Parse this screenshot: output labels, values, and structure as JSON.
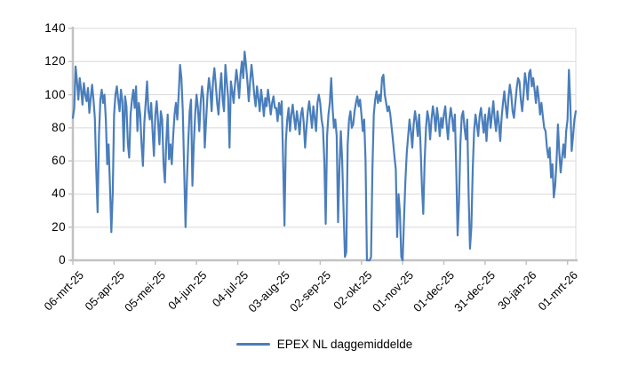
{
  "chart_data": {
    "type": "line",
    "title": "",
    "xlabel": "",
    "ylabel": "",
    "ylim": [
      0,
      140
    ],
    "grid": true,
    "legend_position": "bottom",
    "y_ticks": [
      0,
      20,
      40,
      60,
      80,
      100,
      120,
      140
    ],
    "x_tick_labels": [
      "06-mrt-25",
      "05-apr-25",
      "05-mei-25",
      "04-jun-25",
      "04-jul-25",
      "03-aug-25",
      "02-sep-25",
      "02-okt-25",
      "01-nov-25",
      "01-dec-25",
      "31-dec-25",
      "30-jan-26",
      "01-mrt-26"
    ],
    "x_tick_interval_days": 30,
    "series": [
      {
        "name": "EPEX NL daggemiddelde",
        "color": "#4A7EBB",
        "values": [
          86,
          92,
          117,
          108,
          97,
          110,
          103,
          94,
          107,
          100,
          96,
          104,
          89,
          98,
          106,
          97,
          86,
          55,
          29,
          75,
          97,
          103,
          95,
          100,
          85,
          58,
          70,
          45,
          17,
          40,
          88,
          100,
          105,
          97,
          90,
          103,
          96,
          66,
          99,
          93,
          71,
          62,
          88,
          97,
          103,
          92,
          105,
          78,
          95,
          88,
          70,
          57,
          83,
          95,
          108,
          90,
          85,
          95,
          78,
          63,
          88,
          96,
          84,
          70,
          90,
          85,
          58,
          47,
          72,
          88,
          61,
          70,
          58,
          75,
          88,
          95,
          85,
          100,
          118,
          110,
          90,
          55,
          20,
          48,
          72,
          90,
          97,
          45,
          70,
          88,
          100,
          92,
          78,
          95,
          105,
          98,
          68,
          85,
          100,
          110,
          103,
          90,
          108,
          116,
          106,
          95,
          88,
          103,
          113,
          97,
          90,
          118,
          108,
          98,
          68,
          108,
          102,
          95,
          106,
          115,
          108,
          98,
          112,
          120,
          110,
          126,
          118,
          108,
          96,
          108,
          118,
          110,
          100,
          93,
          105,
          98,
          90,
          103,
          96,
          87,
          98,
          93,
          103,
          96,
          88,
          95,
          99,
          92,
          92,
          84,
          95,
          88,
          96,
          60,
          21,
          72,
          85,
          92,
          78,
          88,
          94,
          86,
          79,
          90,
          84,
          76,
          88,
          92,
          83,
          68,
          80,
          90,
          96,
          88,
          80,
          93,
          86,
          78,
          95,
          100,
          95,
          85,
          80,
          60,
          22,
          75,
          88,
          95,
          110,
          92,
          80,
          85,
          75,
          23,
          55,
          78,
          60,
          30,
          2,
          5,
          70,
          85,
          90,
          80,
          82,
          90,
          95,
          99,
          93,
          97,
          88,
          78,
          85,
          60,
          0,
          0,
          0,
          2,
          55,
          88,
          97,
          102,
          95,
          100,
          96,
          110,
          112,
          100,
          95,
          90,
          93,
          88,
          80,
          72,
          63,
          55,
          14,
          40,
          29,
          2,
          0,
          25,
          48,
          65,
          75,
          85,
          78,
          68,
          82,
          90,
          84,
          75,
          88,
          70,
          45,
          28,
          60,
          80,
          90,
          85,
          73,
          85,
          93,
          87,
          78,
          92,
          85,
          75,
          86,
          80,
          88,
          93,
          82,
          73,
          85,
          92,
          86,
          78,
          88,
          55,
          15,
          35,
          70,
          87,
          90,
          80,
          73,
          85,
          40,
          7,
          20,
          55,
          78,
          88,
          82,
          75,
          87,
          92,
          84,
          77,
          88,
          72,
          85,
          92,
          80,
          88,
          96,
          85,
          78,
          90,
          83,
          72,
          86,
          95,
          102,
          93,
          86,
          98,
          106,
          100,
          90,
          86,
          95,
          104,
          110,
          108,
          97,
          90,
          100,
          113,
          107,
          97,
          113,
          115,
          105,
          110,
          103,
          95,
          105,
          98,
          88,
          95,
          87,
          80,
          78,
          68,
          62,
          68,
          50,
          58,
          38,
          45,
          60,
          82,
          65,
          53,
          62,
          70,
          62,
          78,
          85,
          115,
          95,
          66,
          75,
          85,
          90
        ]
      }
    ]
  },
  "legend": {
    "label": "EPEX NL daggemiddelde"
  },
  "colors": {
    "line": "#4A7EBB",
    "gridline": "#D9D9D9",
    "axis": "#C2C2C2",
    "text": "#000000",
    "background": "#FFFFFF"
  }
}
